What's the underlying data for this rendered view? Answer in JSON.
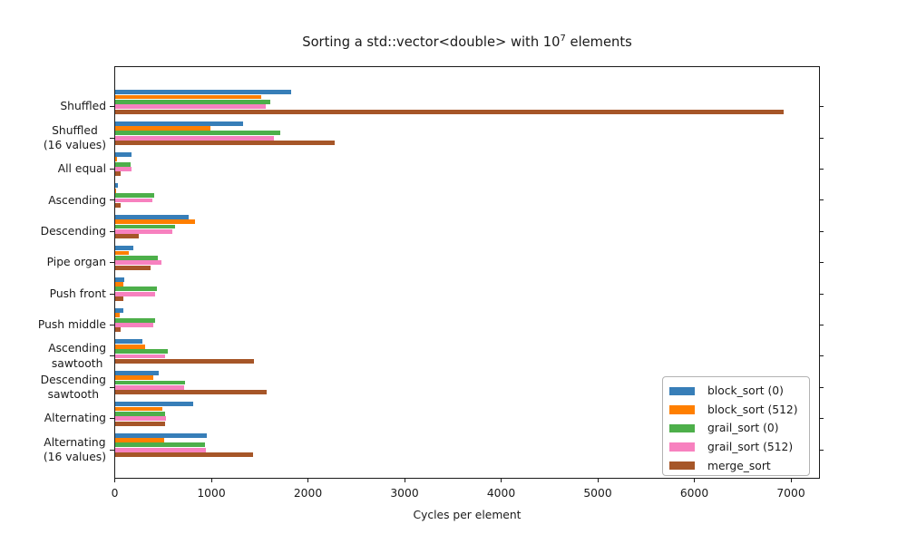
{
  "title": {
    "prefix": "Sorting a std::vector<double> with 10",
    "exponent": "7",
    "suffix": " elements",
    "unicode": "Sorting a std::vector<double> with 10⁷ elements"
  },
  "chart_data": {
    "type": "bar",
    "orientation": "horizontal",
    "title": "Sorting a std::vector<double> with 10^7 elements",
    "xlabel": "Cycles per element",
    "ylabel": "",
    "xlim": [
      0,
      7290
    ],
    "xticks": [
      0,
      1000,
      2000,
      3000,
      4000,
      5000,
      6000,
      7000
    ],
    "grid": false,
    "legend_position": "lower right inside",
    "categories": [
      "Shuffled",
      "Shuffled\n(16 values)",
      "All equal",
      "Ascending",
      "Descending",
      "Pipe organ",
      "Push front",
      "Push middle",
      "Ascending\nsawtooth",
      "Descending\nsawtooth",
      "Alternating",
      "Alternating\n(16 values)"
    ],
    "series": [
      {
        "name": "block_sort (0)",
        "color": "#377eb8",
        "values": [
          1830,
          1330,
          170,
          30,
          765,
          190,
          95,
          90,
          290,
          460,
          810,
          950
        ]
      },
      {
        "name": "block_sort (512)",
        "color": "#ff7f00",
        "values": [
          1520,
          990,
          25,
          15,
          830,
          150,
          90,
          55,
          310,
          395,
          495,
          515
        ]
      },
      {
        "name": "grail_sort (0)",
        "color": "#4daf4a",
        "values": [
          1615,
          1710,
          165,
          405,
          620,
          450,
          440,
          420,
          545,
          725,
          525,
          930
        ]
      },
      {
        "name": "grail_sort (512)",
        "color": "#f781bf",
        "values": [
          1560,
          1650,
          175,
          390,
          600,
          480,
          415,
          400,
          525,
          715,
          530,
          940
        ]
      },
      {
        "name": "merge_sort",
        "color": "#a65628",
        "values": [
          6925,
          2275,
          65,
          65,
          245,
          375,
          85,
          65,
          1445,
          1575,
          525,
          1435
        ]
      }
    ]
  }
}
